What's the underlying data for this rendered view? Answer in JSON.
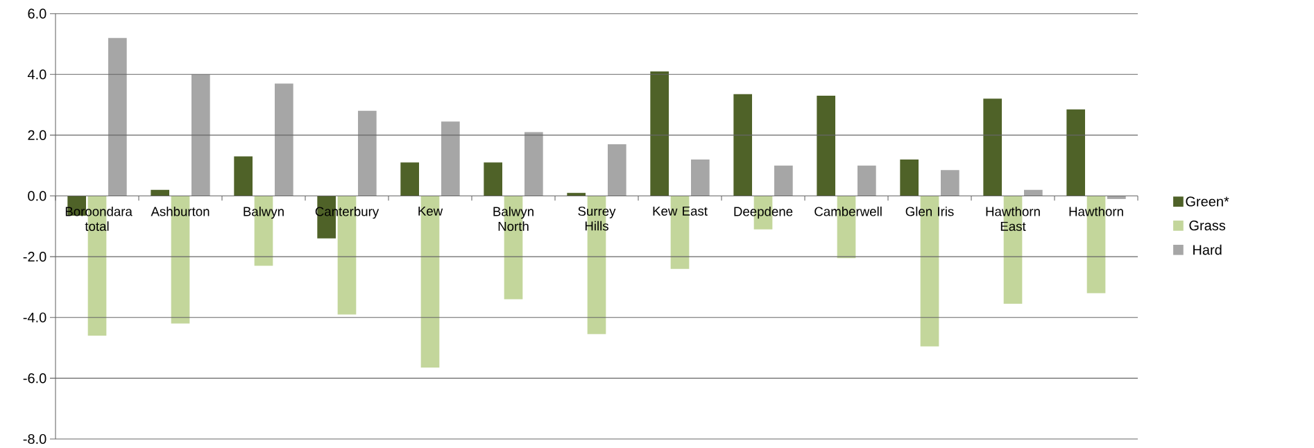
{
  "chart_data": {
    "type": "bar",
    "categories": [
      "Boroondara total",
      "Ashburton",
      "Balwyn",
      "Canterbury",
      "Kew",
      "Balwyn North",
      "Surrey Hills",
      "Kew East",
      "Deepdene",
      "Camberwell",
      "Glen Iris",
      "Hawthorn East",
      "Hawthorn"
    ],
    "series": [
      {
        "name": "Green*",
        "color": "#4f6228",
        "values": [
          -0.65,
          0.2,
          1.3,
          -1.4,
          1.1,
          1.1,
          0.1,
          4.1,
          3.35,
          3.3,
          1.2,
          3.2,
          2.85
        ]
      },
      {
        "name": "Grass",
        "color": "#c3d69b",
        "values": [
          -4.6,
          -4.2,
          -2.3,
          -3.9,
          -5.65,
          -3.4,
          -4.55,
          -2.4,
          -1.1,
          -2.05,
          -4.95,
          -3.55,
          -3.2
        ]
      },
      {
        "name": "Hard",
        "color": "#a6a6a6",
        "values": [
          5.2,
          4.0,
          3.7,
          2.8,
          2.45,
          2.1,
          1.7,
          1.2,
          1.0,
          1.0,
          0.85,
          0.2,
          -0.1
        ]
      }
    ],
    "ylim": [
      -8,
      6
    ],
    "yticks": [
      {
        "value": -8,
        "label": "-8.0"
      },
      {
        "value": -6,
        "label": "-6.0"
      },
      {
        "value": -4,
        "label": "-4.0"
      },
      {
        "value": -2,
        "label": "-2.0"
      },
      {
        "value": 0,
        "label": "0.0"
      },
      {
        "value": 2,
        "label": "2.0"
      },
      {
        "value": 4,
        "label": "4.0"
      },
      {
        "value": 6,
        "label": "6.0"
      }
    ],
    "grid": "y",
    "legend": "right"
  }
}
